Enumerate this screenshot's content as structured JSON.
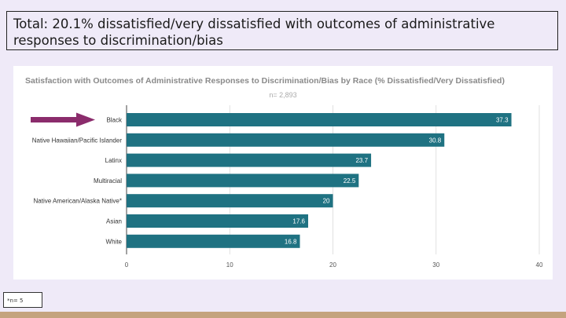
{
  "header": {
    "text": "Total: 20.1% dissatisfied/very dissatisfied with outcomes of administrative responses to discrimination/bias"
  },
  "note": {
    "text": "*n= 5"
  },
  "colors": {
    "bar": "#1f7282",
    "arrow": "#8b2c6c",
    "background": "#efeaf8",
    "footer": "#c4a37e"
  },
  "chart_data": {
    "type": "bar",
    "orientation": "horizontal",
    "title": "Satisfaction with Outcomes of Administrative Responses to Discrimination/Bias by Race (% Dissatisfied/Very Dissatisfied)",
    "subtitle": "n= 2,893",
    "categories": [
      "Black",
      "Native Hawaiian/Pacific Islander",
      "Latinx",
      "Multiracial",
      "Native American/Alaska Native*",
      "Asian",
      "White"
    ],
    "values": [
      37.3,
      30.8,
      23.7,
      22.5,
      20,
      17.6,
      16.8
    ],
    "value_labels": [
      "37.3",
      "30.8",
      "23.7",
      "22.5",
      "20",
      "17.6",
      "16.8"
    ],
    "xlim": [
      0,
      40
    ],
    "ticks": [
      0,
      10,
      20,
      30,
      40
    ],
    "tick_labels": [
      "0",
      "10",
      "20",
      "30",
      "40"
    ],
    "grid": true,
    "highlight": "Black"
  }
}
